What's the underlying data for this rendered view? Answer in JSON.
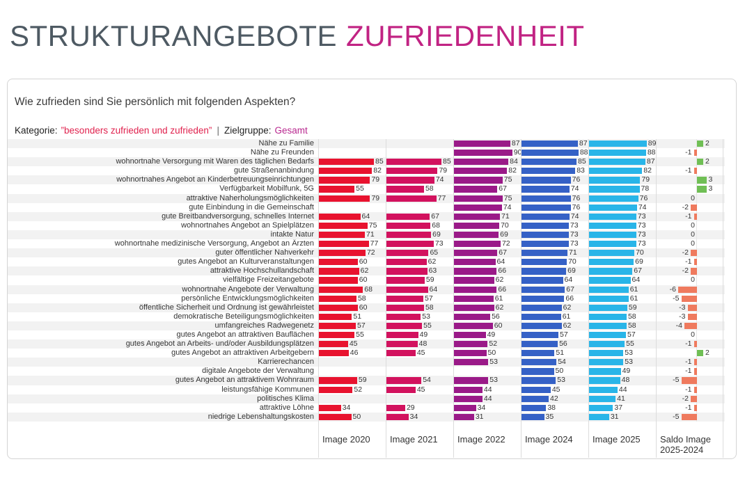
{
  "header": {
    "title_primary": "STRUKTURANGEBOTE",
    "title_accent": "ZUFRIEDENHEIT"
  },
  "panel": {
    "question": "Wie zufrieden sind Sie persönlich mit folgenden Aspekten?",
    "category_label": "Kategorie:",
    "category_value": "”besonders zufrieden und zufrieden”",
    "separator": "|",
    "group_label": "Zielgruppe:",
    "group_value": "Gesamt"
  },
  "colors": {
    "title_primary": "#4e5a63",
    "title_accent": "#c12383",
    "category_value": "#e0224e",
    "group_value": "#b8288f",
    "series": [
      "#e8132f",
      "#d2125e",
      "#9a1a88",
      "#3561c6",
      "#29b5e8"
    ],
    "saldo_positive": "#70bf55",
    "saldo_negative": "#ef7a5e"
  },
  "chart_data": {
    "type": "bar",
    "orientation": "horizontal",
    "value_range": [
      0,
      100
    ],
    "grid": false,
    "legend_position": "bottom-column-footers",
    "saldo_footer": "Saldo Image\n2025-2024",
    "categories": [
      "Nähe zu Familie",
      "Nähe zu Freunden",
      "wohnortnahe Versorgung mit Waren des täglichen Bedarfs",
      "gute Straßenanbindung",
      "wohnortnahes Angebot an Kinderbetreuungseinrichtungen",
      "Verfügbarkeit Mobilfunk, 5G",
      "attraktive Naherholungsmöglichkeiten",
      "gute Einbindung in die Gemeinschaft",
      "gute Breitbandversorgung, schnelles Internet",
      "wohnortnahes Angebot an Spielplätzen",
      "intakte Natur",
      "wohnortnahe medizinische Versorgung, Angebot an Ärzten",
      "guter öffentlicher Nahverkehr",
      "gutes Angebot an Kulturveranstaltungen",
      "attraktive Hochschullandschaft",
      "vielfältige Freizeitangebote",
      "wohnortnahe Angebote der Verwaltung",
      "persönliche Entwicklungsmöglichkeiten",
      "öffentliche Sicherheit und Ordnung ist gewährleistet",
      "demokratische Beteiligungsmöglichkeiten",
      "umfangreiches Radwegenetz",
      "gutes Angebot an attraktiven Bauflächen",
      "gutes Angebot an Arbeits- und/oder Ausbildungsplätzen",
      "gutes Angebot an attraktiven Arbeitgebern",
      "Karrierechancen",
      "digitale Angebote der Verwaltung",
      "gutes Angebot an attraktivem Wohnraum",
      "leistungsfähige Kommunen",
      "politisches Klima",
      "attraktive Löhne",
      "niedrige Lebenshaltungskosten"
    ],
    "series": [
      {
        "name": "Image 2020",
        "values": [
          null,
          null,
          85,
          82,
          79,
          55,
          79,
          null,
          64,
          75,
          71,
          77,
          72,
          60,
          62,
          60,
          68,
          58,
          60,
          51,
          57,
          55,
          45,
          46,
          null,
          null,
          59,
          52,
          null,
          34,
          50
        ]
      },
      {
        "name": "Image 2021",
        "values": [
          null,
          null,
          85,
          79,
          74,
          58,
          77,
          null,
          67,
          68,
          69,
          73,
          65,
          62,
          63,
          59,
          64,
          57,
          58,
          53,
          55,
          49,
          48,
          45,
          null,
          null,
          54,
          45,
          null,
          29,
          34
        ]
      },
      {
        "name": "Image 2022",
        "values": [
          87,
          90,
          84,
          82,
          75,
          67,
          75,
          74,
          71,
          70,
          69,
          72,
          67,
          64,
          66,
          62,
          66,
          61,
          62,
          56,
          60,
          49,
          52,
          50,
          53,
          null,
          53,
          44,
          44,
          34,
          31
        ]
      },
      {
        "name": "Image 2024",
        "values": [
          87,
          88,
          85,
          83,
          76,
          74,
          76,
          76,
          74,
          73,
          73,
          73,
          71,
          70,
          69,
          64,
          67,
          66,
          62,
          61,
          62,
          57,
          56,
          51,
          54,
          50,
          53,
          45,
          42,
          38,
          35
        ]
      },
      {
        "name": "Image 2025",
        "values": [
          89,
          88,
          87,
          82,
          79,
          78,
          76,
          74,
          73,
          73,
          73,
          73,
          70,
          69,
          67,
          64,
          61,
          61,
          59,
          58,
          58,
          57,
          55,
          53,
          53,
          49,
          48,
          44,
          41,
          37,
          31
        ]
      }
    ],
    "saldo": {
      "name": "Saldo Image 2025-2024",
      "values": [
        2,
        -1,
        2,
        -1,
        3,
        3,
        0,
        -2,
        -1,
        0,
        0,
        0,
        -2,
        -1,
        -2,
        0,
        -6,
        -5,
        -3,
        -3,
        -4,
        0,
        -1,
        2,
        -1,
        -1,
        -5,
        -1,
        -2,
        -1,
        -5
      ]
    }
  }
}
